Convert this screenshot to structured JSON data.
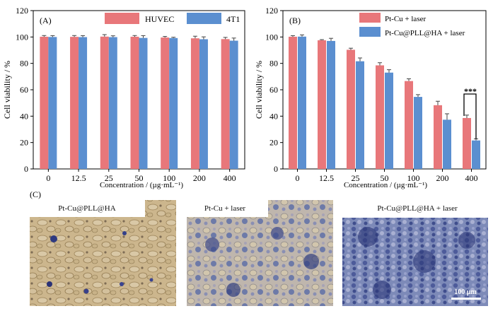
{
  "chart_data": [
    {
      "type": "bar",
      "panel_label": "(A)",
      "xlabel": "Concentration / (µg·mL⁻¹)",
      "ylabel": "Cell viability / %",
      "ylim": [
        0,
        120
      ],
      "yticks": [
        "0",
        "20",
        "40",
        "60",
        "80",
        "100",
        "120"
      ],
      "categories": [
        "0",
        "12.5",
        "25",
        "50",
        "100",
        "200",
        "400"
      ],
      "legend_position": "top",
      "series": [
        {
          "name": "HUVEC",
          "color": "#E8777A",
          "values": [
            100.2,
            100.1,
            100.3,
            100.2,
            99.6,
            99.0,
            98.4
          ],
          "errors": [
            0.9,
            1.0,
            1.5,
            0.9,
            0.8,
            1.6,
            1.3
          ]
        },
        {
          "name": "4T1",
          "color": "#5B8FD0",
          "values": [
            100.0,
            99.9,
            99.9,
            99.3,
            99.2,
            98.3,
            97.2
          ],
          "errors": [
            1.0,
            1.1,
            1.0,
            1.7,
            0.6,
            1.8,
            2.0
          ]
        }
      ]
    },
    {
      "type": "bar",
      "panel_label": "(B)",
      "xlabel": "Concentration / (µg·mL⁻¹)",
      "ylabel": "Cell viability / %",
      "ylim": [
        0,
        120
      ],
      "yticks": [
        "0",
        "20",
        "40",
        "60",
        "80",
        "100",
        "120"
      ],
      "categories": [
        "0",
        "12.5",
        "25",
        "50",
        "100",
        "200",
        "400"
      ],
      "legend_position": "top-right",
      "annotation": "***",
      "series": [
        {
          "name": "Pt-Cu + laser",
          "color": "#E8777A",
          "values": [
            100.2,
            97.5,
            90.3,
            78.5,
            66.6,
            48.3,
            38.6
          ],
          "errors": [
            0.8,
            0.5,
            1.2,
            2.0,
            1.7,
            3.0,
            2.2
          ]
        },
        {
          "name": "Pt-Cu@PLL@HA + laser",
          "color": "#5B8FD0",
          "values": [
            100.3,
            97.0,
            81.6,
            73.0,
            54.6,
            37.3,
            21.6
          ],
          "errors": [
            1.3,
            2.0,
            2.5,
            2.2,
            1.7,
            4.5,
            1.2
          ]
        }
      ]
    }
  ],
  "photos": {
    "panel_label": "(C)",
    "items": [
      {
        "caption": "Pt-Cu@PLL@HA"
      },
      {
        "caption": "Pt-Cu + laser"
      },
      {
        "caption": "Pt-Cu@PLL@HA + laser"
      }
    ],
    "scale_bar_label": "100 µm"
  }
}
